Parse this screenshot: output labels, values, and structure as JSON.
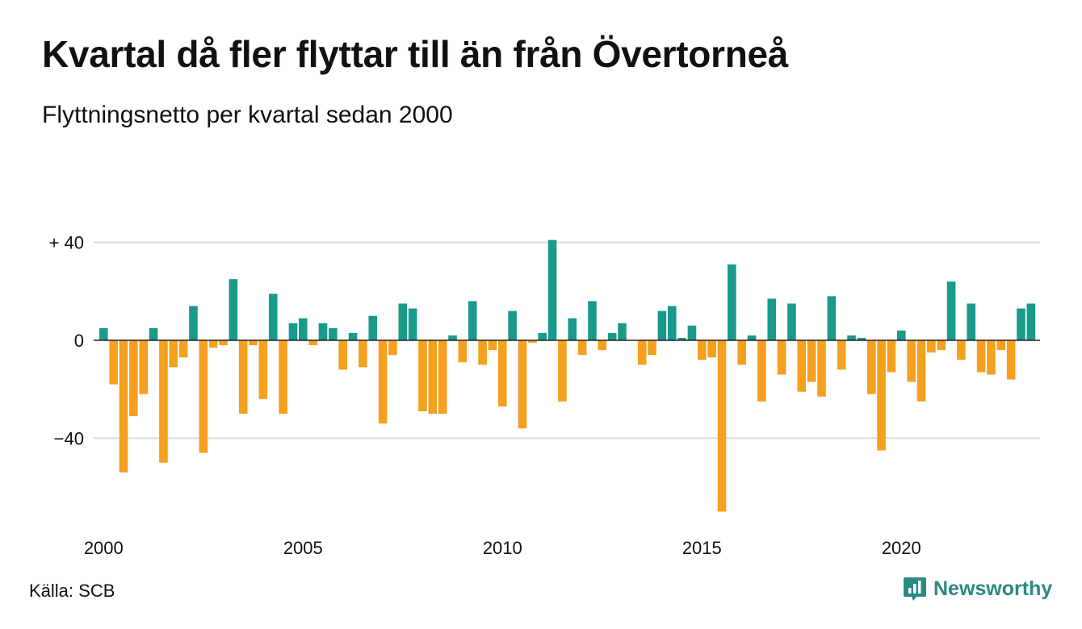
{
  "title": "Kvartal då fler flyttar till än från Övertorneå",
  "subtitle": "Flyttningsnetto per kvartal sedan 2000",
  "source": "Källa: SCB",
  "brand": {
    "name": "Newsworthy",
    "icon": "newsworthy-logo-icon"
  },
  "colors": {
    "positive": "#1a9a8a",
    "negative": "#f5a01e",
    "grid": "#dcdcdc",
    "brand": "#2b8a83"
  },
  "chart_data": {
    "type": "bar",
    "title": "",
    "xlabel": "",
    "ylabel": "",
    "ylim": [
      -70,
      42
    ],
    "grid": true,
    "legend": "none",
    "y_ticks": [
      {
        "value": 40,
        "label": "+ 40"
      },
      {
        "value": 0,
        "label": "0"
      },
      {
        "value": -40,
        "label": "−40"
      }
    ],
    "x_ticks": [
      {
        "value": 2000,
        "label": "2000"
      },
      {
        "value": 2005,
        "label": "2005"
      },
      {
        "value": 2010,
        "label": "2010"
      },
      {
        "value": 2015,
        "label": "2015"
      },
      {
        "value": 2020,
        "label": "2020"
      }
    ],
    "x_start": "2000 Q1",
    "x_end": "2023 Q3",
    "x_step": "quarter",
    "values": [
      5,
      -18,
      -54,
      -31,
      -22,
      5,
      -50,
      -11,
      -7,
      14,
      -46,
      -3,
      -2,
      25,
      -30,
      -2,
      -24,
      19,
      -30,
      7,
      9,
      -2,
      7,
      5,
      -12,
      3,
      -11,
      10,
      -34,
      -6,
      15,
      13,
      -29,
      -30,
      -30,
      2,
      -9,
      16,
      -10,
      -4,
      -27,
      12,
      -36,
      -1,
      3,
      41,
      -25,
      9,
      -6,
      16,
      -4,
      3,
      7,
      0,
      -10,
      -6,
      12,
      14,
      1,
      6,
      -8,
      -7,
      -70,
      31,
      -10,
      2,
      -25,
      17,
      -14,
      15,
      -21,
      -17,
      -23,
      18,
      -12,
      2,
      1,
      -22,
      -45,
      -13,
      4,
      -17,
      -25,
      -5,
      -4,
      24,
      -8,
      15,
      -13,
      -14,
      -4,
      -16,
      13,
      15
    ]
  }
}
